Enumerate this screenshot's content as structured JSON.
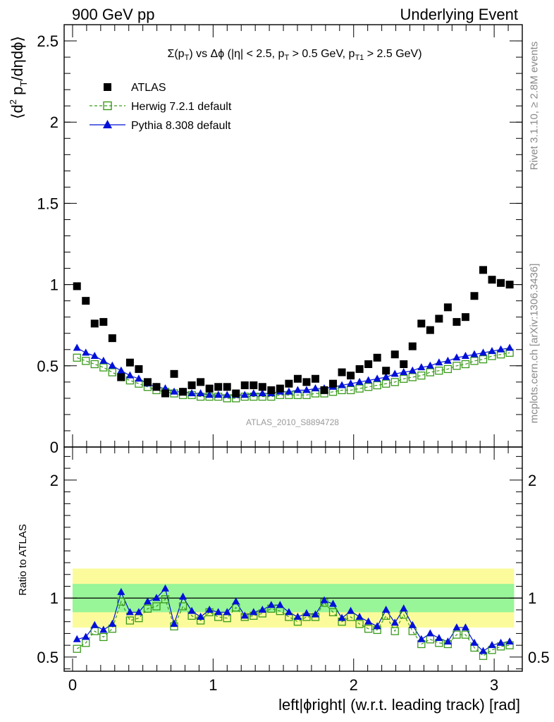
{
  "header": {
    "left": "900 GeV pp",
    "right": "Underlying Event"
  },
  "side_text": {
    "rivet": "Rivet 3.1.10, ≥ 2.8M events",
    "mcplots": "mcplots.cern.ch [arXiv:1306.3436]"
  },
  "watermark": "ATLAS_2010_S8894728",
  "colors": {
    "atlas": "#000000",
    "herwig": "#3a9a1a",
    "pythia": "#0010d8",
    "band_inner": "#98f598",
    "band_outer": "#fbfb9c"
  },
  "chart_data": [
    {
      "type": "scatter",
      "title_parts": [
        "Σ(p",
        "T",
        ") vs Δϕ (|η| < 2.5, p",
        "T",
        " > 0.5 GeV, p",
        "T1",
        " > 2.5 GeV)"
      ],
      "ylabel_parts": [
        "⟨d",
        "2",
        " p",
        "T",
        "/dηdϕ⟩"
      ],
      "xlim": [
        -0.06,
        3.2
      ],
      "ylim": [
        0,
        2.6
      ],
      "yticks": [
        0,
        0.5,
        1,
        1.5,
        2,
        2.5
      ],
      "ytick_labels": [
        "0",
        "0.5",
        "1",
        "1.5",
        "2",
        "2.5"
      ],
      "x": [
        0.0314,
        0.0942,
        0.157,
        0.2199,
        0.2827,
        0.3456,
        0.4084,
        0.4712,
        0.5341,
        0.5969,
        0.6597,
        0.7226,
        0.7854,
        0.8482,
        0.9111,
        0.9739,
        1.0367,
        1.0996,
        1.1624,
        1.2252,
        1.2881,
        1.3509,
        1.4137,
        1.4765,
        1.5394,
        1.6022,
        1.665,
        1.7279,
        1.7907,
        1.8535,
        1.9164,
        1.9792,
        2.042,
        2.1049,
        2.1677,
        2.2305,
        2.2934,
        2.3562,
        2.419,
        2.4819,
        2.5447,
        2.6075,
        2.6704,
        2.7332,
        2.796,
        2.8589,
        2.9217,
        2.9845,
        3.0474,
        3.1102
      ],
      "series": [
        {
          "name": "ATLAS",
          "marker": "square-filled",
          "values": [
            0.99,
            0.9,
            0.76,
            0.77,
            0.67,
            0.43,
            0.52,
            0.48,
            0.4,
            0.37,
            0.33,
            0.45,
            0.34,
            0.38,
            0.4,
            0.36,
            0.37,
            0.37,
            0.33,
            0.38,
            0.38,
            0.37,
            0.35,
            0.36,
            0.39,
            0.42,
            0.4,
            0.42,
            0.35,
            0.39,
            0.46,
            0.44,
            0.48,
            0.51,
            0.55,
            0.47,
            0.57,
            0.51,
            0.62,
            0.76,
            0.72,
            0.79,
            0.86,
            0.77,
            0.8,
            0.93,
            1.09,
            1.03,
            1.01,
            1.0
          ]
        },
        {
          "name": "Herwig 7.2.1 default",
          "marker": "square-open",
          "line": "dashed",
          "values": [
            0.55,
            0.53,
            0.51,
            0.49,
            0.46,
            0.43,
            0.41,
            0.39,
            0.37,
            0.35,
            0.34,
            0.33,
            0.32,
            0.32,
            0.31,
            0.31,
            0.31,
            0.3,
            0.3,
            0.31,
            0.31,
            0.31,
            0.31,
            0.32,
            0.32,
            0.32,
            0.32,
            0.33,
            0.33,
            0.34,
            0.35,
            0.35,
            0.36,
            0.37,
            0.38,
            0.39,
            0.4,
            0.42,
            0.43,
            0.44,
            0.46,
            0.47,
            0.48,
            0.5,
            0.51,
            0.53,
            0.54,
            0.56,
            0.57,
            0.58
          ]
        },
        {
          "name": "Pythia 8.308 default",
          "marker": "triangle-filled",
          "line": "solid",
          "values": [
            0.61,
            0.58,
            0.56,
            0.53,
            0.5,
            0.47,
            0.44,
            0.42,
            0.39,
            0.37,
            0.36,
            0.34,
            0.34,
            0.33,
            0.33,
            0.32,
            0.32,
            0.32,
            0.32,
            0.32,
            0.33,
            0.33,
            0.33,
            0.34,
            0.34,
            0.35,
            0.35,
            0.36,
            0.36,
            0.37,
            0.38,
            0.39,
            0.4,
            0.41,
            0.42,
            0.43,
            0.45,
            0.46,
            0.47,
            0.49,
            0.5,
            0.52,
            0.53,
            0.55,
            0.56,
            0.57,
            0.58,
            0.59,
            0.6,
            0.61
          ]
        }
      ]
    },
    {
      "type": "line",
      "xlabel": "left|ϕright| (w.r.t. leading track) [rad]",
      "ylabel": "Ratio to ATLAS",
      "xlim": [
        -0.06,
        3.2
      ],
      "ylim": [
        0.38,
        2.28
      ],
      "yticks": [
        0.5,
        1,
        2
      ],
      "ytick_labels": [
        "0.5",
        "1",
        "2"
      ],
      "xticks": [
        0,
        1,
        2,
        3
      ],
      "xtick_labels": [
        "0",
        "1",
        "2",
        "3"
      ],
      "reference_line": 1,
      "band_inner": [
        0.88,
        1.12
      ],
      "band_outer": [
        0.75,
        1.25
      ],
      "series": [
        {
          "name": "Herwig 7.2.1 default",
          "values": [
            0.57,
            0.62,
            0.72,
            0.67,
            0.74,
            0.97,
            0.81,
            0.83,
            0.91,
            0.93,
            0.99,
            0.76,
            0.93,
            0.85,
            0.81,
            0.88,
            0.84,
            0.83,
            0.92,
            0.84,
            0.85,
            0.87,
            0.91,
            0.89,
            0.84,
            0.8,
            0.84,
            0.84,
            0.96,
            0.88,
            0.8,
            0.84,
            0.78,
            0.74,
            0.73,
            0.85,
            0.72,
            0.86,
            0.72,
            0.61,
            0.65,
            0.62,
            0.61,
            0.69,
            0.69,
            0.58,
            0.51,
            0.56,
            0.59,
            0.6
          ]
        },
        {
          "name": "Pythia 8.308 default",
          "values": [
            0.65,
            0.67,
            0.77,
            0.73,
            0.78,
            1.05,
            0.88,
            0.88,
            0.97,
            1.0,
            1.08,
            0.78,
            1.01,
            0.89,
            0.84,
            0.9,
            0.88,
            0.88,
            0.97,
            0.85,
            0.88,
            0.9,
            0.94,
            0.94,
            0.88,
            0.84,
            0.87,
            0.86,
            0.98,
            0.95,
            0.83,
            0.89,
            0.84,
            0.8,
            0.76,
            0.9,
            0.79,
            0.91,
            0.77,
            0.65,
            0.7,
            0.66,
            0.63,
            0.75,
            0.75,
            0.62,
            0.55,
            0.6,
            0.62,
            0.63
          ]
        }
      ]
    }
  ]
}
